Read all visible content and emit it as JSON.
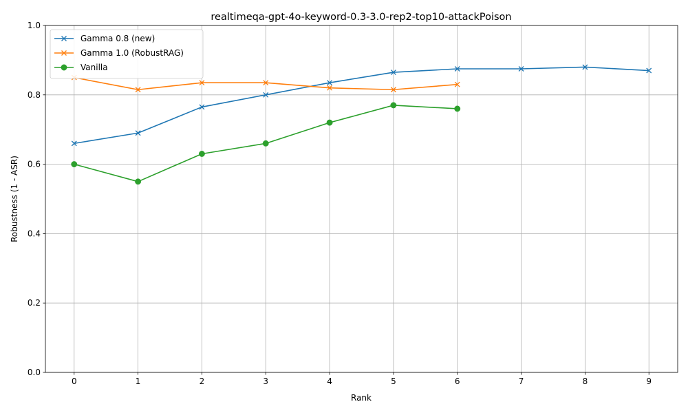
{
  "chart_data": {
    "type": "line",
    "title": "realtimeqa-gpt-4o-keyword-0.3-3.0-rep2-top10-attackPoison",
    "xlabel": "Rank",
    "ylabel": "Robustness (1 - ASR)",
    "xlim": [
      -0.45,
      9.45
    ],
    "ylim": [
      0.0,
      1.0
    ],
    "xticks": [
      0,
      1,
      2,
      3,
      4,
      5,
      6,
      7,
      8,
      9
    ],
    "yticks": [
      0.0,
      0.2,
      0.4,
      0.6,
      0.8,
      1.0
    ],
    "ytick_labels": [
      "0.0",
      "0.2",
      "0.4",
      "0.6",
      "0.8",
      "1.0"
    ],
    "grid": true,
    "legend_position": "top-left",
    "series": [
      {
        "name": "Gamma 0.8 (new)",
        "color": "#1f77b4",
        "marker": "x",
        "x": [
          0,
          1,
          2,
          3,
          4,
          5,
          6,
          7,
          8,
          9
        ],
        "values": [
          0.66,
          0.69,
          0.765,
          0.8,
          0.835,
          0.865,
          0.875,
          0.875,
          0.88,
          0.87
        ]
      },
      {
        "name": "Gamma 1.0 (RobustRAG)",
        "color": "#ff7f0e",
        "marker": "x",
        "x": [
          0,
          1,
          2,
          3,
          4,
          5,
          6
        ],
        "values": [
          0.85,
          0.815,
          0.835,
          0.835,
          0.82,
          0.815,
          0.83
        ]
      },
      {
        "name": "Vanilla",
        "color": "#2ca02c",
        "marker": "o",
        "x": [
          0,
          1,
          2,
          3,
          4,
          5,
          6
        ],
        "values": [
          0.6,
          0.55,
          0.63,
          0.66,
          0.72,
          0.77,
          0.76
        ]
      }
    ]
  }
}
